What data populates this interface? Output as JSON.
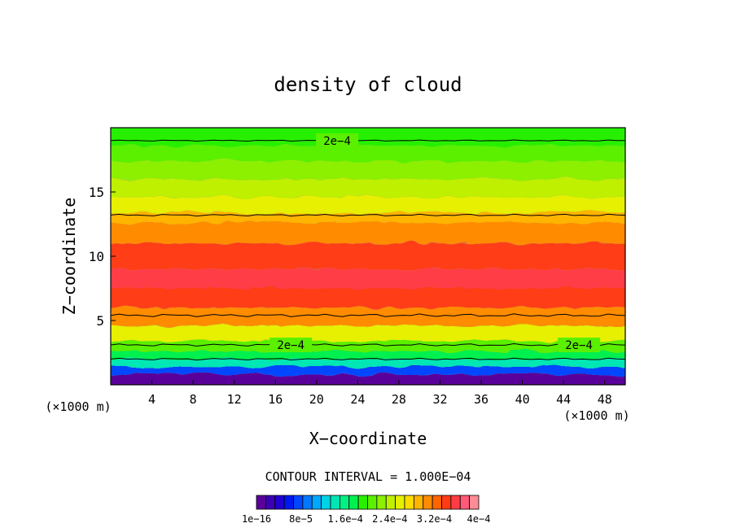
{
  "chart_data": {
    "type": "contour",
    "title": "density of cloud",
    "xlabel": "X−coordinate",
    "ylabel": "Z−coordinate",
    "x_unit": "(×1000 m)",
    "y_unit": "(×1000 m)",
    "xlim": [
      0,
      50
    ],
    "ylim": [
      0,
      20
    ],
    "x_ticks": [
      4,
      8,
      12,
      16,
      20,
      24,
      28,
      32,
      36,
      40,
      44,
      48
    ],
    "y_ticks": [
      5,
      10,
      15
    ],
    "contour_interval_text": "CONTOUR INTERVAL = 1.000E−04",
    "contour_labels": [
      {
        "text": "2e−4",
        "x": 22,
        "z": 19.0
      },
      {
        "text": "2e−4",
        "x": 17.5,
        "z": 3.1
      },
      {
        "text": "2e−4",
        "x": 45.5,
        "z": 3.1
      }
    ],
    "colorbar": {
      "tick_labels": [
        "1e−16",
        "8e−5",
        "1.6e−4",
        "2.4e−4",
        "3.2e−4",
        "4e−4"
      ],
      "colors": [
        "#5a009a",
        "#3c00b4",
        "#2000d2",
        "#0018f0",
        "#0046ff",
        "#0078ff",
        "#00a8ff",
        "#00d2e6",
        "#00e6b4",
        "#00f082",
        "#00f050",
        "#28f000",
        "#5af000",
        "#8cf000",
        "#bef000",
        "#e6f000",
        "#ffdc00",
        "#ffb400",
        "#ff8c00",
        "#ff6400",
        "#ff3c14",
        "#ff3c46",
        "#ff5a78",
        "#ff8c96"
      ]
    },
    "vertical_profile": [
      {
        "z": 0.8,
        "level": 0
      },
      {
        "z": 1.4,
        "level": 4
      },
      {
        "z": 2.0,
        "level": 8
      },
      {
        "z": 2.6,
        "level": 10
      },
      {
        "z": 3.4,
        "level": 12
      },
      {
        "z": 4.6,
        "level": 15
      },
      {
        "z": 6.0,
        "level": 18
      },
      {
        "z": 7.5,
        "level": 20
      },
      {
        "z": 9.0,
        "level": 21
      },
      {
        "z": 11.0,
        "level": 20
      },
      {
        "z": 12.6,
        "level": 18
      },
      {
        "z": 13.4,
        "level": 17
      },
      {
        "z": 14.6,
        "level": 15
      },
      {
        "z": 16.0,
        "level": 14
      },
      {
        "z": 17.4,
        "level": 13
      },
      {
        "z": 18.6,
        "level": 12
      },
      {
        "z": 19.4,
        "level": 11
      }
    ]
  }
}
